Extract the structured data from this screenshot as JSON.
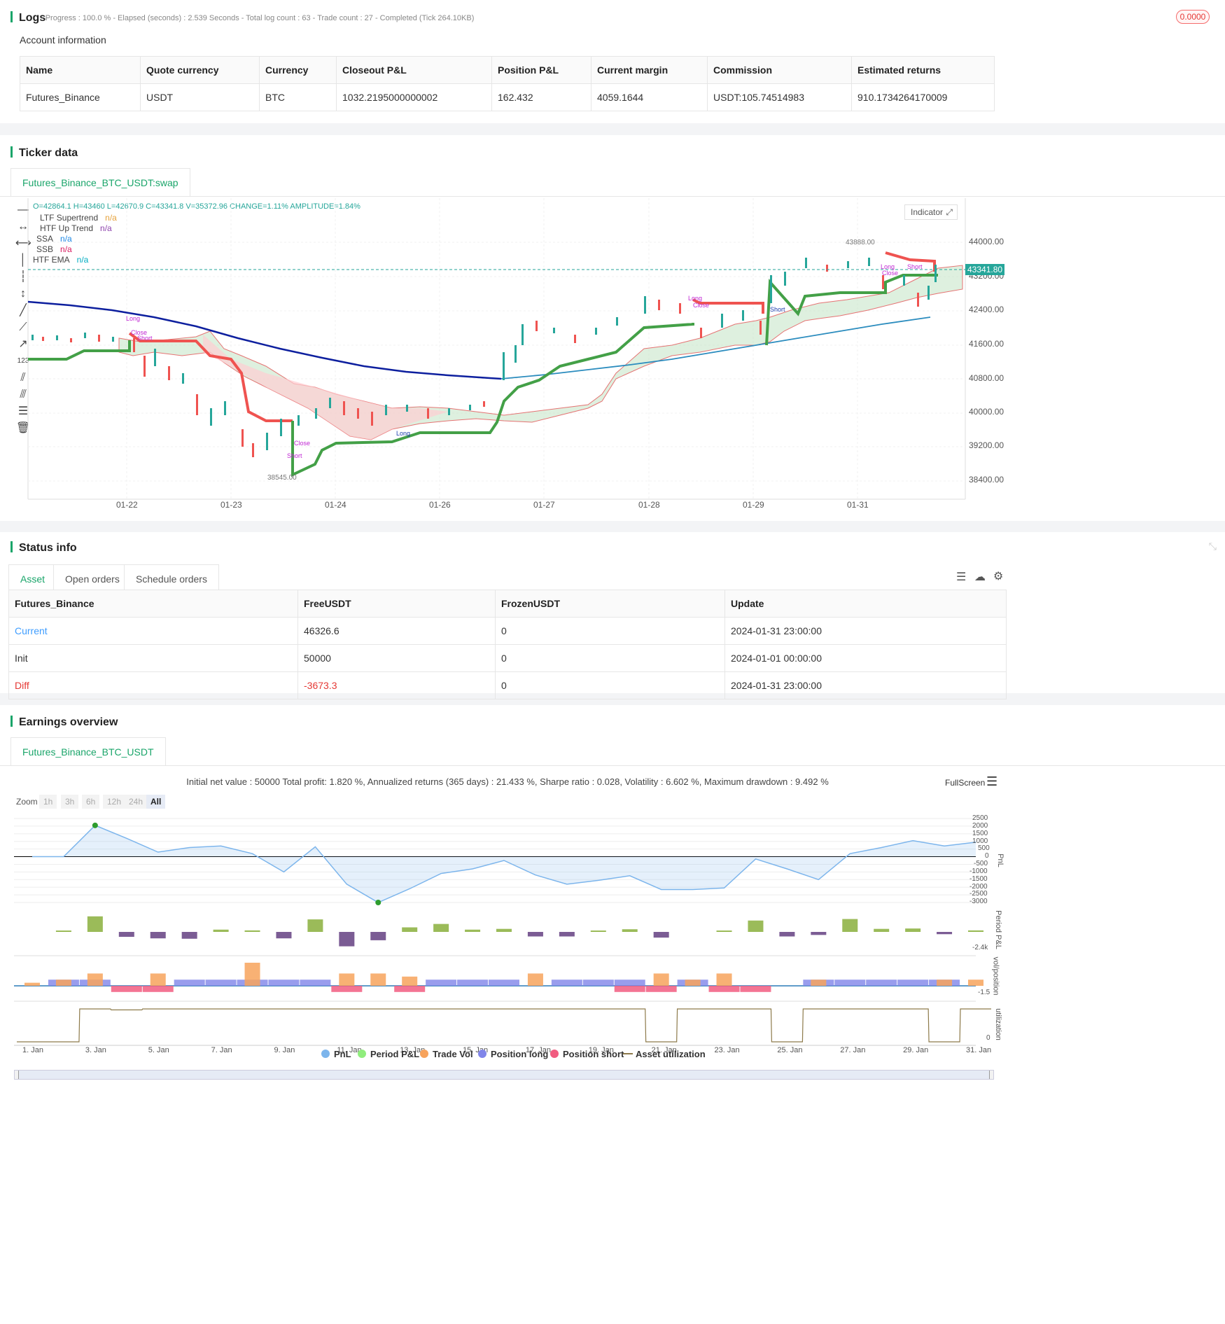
{
  "logs": {
    "title": "Logs",
    "status": "- Progress : 100.0 % - Elapsed (seconds) : 2.539  Seconds - Total log count : 63 - Trade count : 27 - Completed (Tick 264.10KB)",
    "badge": "0.0000"
  },
  "account": {
    "title": "Account information",
    "headers": [
      "Name",
      "Quote currency",
      "Currency",
      "Closeout P&L",
      "Position P&L",
      "Current margin",
      "Commission",
      "Estimated returns"
    ],
    "row": [
      "Futures_Binance",
      "USDT",
      "BTC",
      "1032.2195000000002",
      "162.432",
      "4059.1644",
      "USDT:105.74514983",
      "910.1734264170009"
    ]
  },
  "ticker": {
    "title": "Ticker data",
    "tab": "Futures_Binance_BTC_USDT:swap",
    "ohlc": "O=42864.1 H=43460 L=42670.9 C=43341.8 V=35372.96 CHANGE=1.11% AMPLITUDE=1.84%",
    "indicator_btn": "Indicator",
    "legend": [
      {
        "name": "LTF Supertrend",
        "value": "n/a",
        "color": "#e6a23c"
      },
      {
        "name": "HTF Up Trend",
        "value": "n/a",
        "color": "#8e44ad"
      },
      {
        "name": "SSA",
        "value": "n/a",
        "color": "#1e88e5"
      },
      {
        "name": "SSB",
        "value": "n/a",
        "color": "#d81b60"
      },
      {
        "name": "HTF EMA",
        "value": "n/a",
        "color": "#00acc1"
      }
    ],
    "price_axis": [
      "44000.00",
      "43200.00",
      "42400.00",
      "41600.00",
      "40800.00",
      "40000.00",
      "39200.00",
      "38400.00"
    ],
    "last_price": "43341.80",
    "high_label": "43888.00",
    "low_label": "38545.00",
    "date_axis": [
      "01-22",
      "01-23",
      "01-24",
      "01-26",
      "01-27",
      "01-28",
      "01-29",
      "01-31"
    ],
    "markers": [
      "Long",
      "Close",
      "Short",
      "Long",
      "Close",
      "Short",
      "Long",
      "Close",
      "Short",
      "Long",
      "Close",
      "Short"
    ]
  },
  "status": {
    "title": "Status info",
    "tabs": [
      "Asset",
      "Open orders",
      "Schedule orders"
    ],
    "headers": [
      "Futures_Binance",
      "FreeUSDT",
      "FrozenUSDT",
      "Update"
    ],
    "rows": [
      [
        "Current",
        "46326.6",
        "0",
        "2024-01-31 23:00:00"
      ],
      [
        "Init",
        "50000",
        "0",
        "2024-01-01 00:00:00"
      ],
      [
        "Diff",
        "-3673.3",
        "0",
        "2024-01-31 23:00:00"
      ]
    ]
  },
  "earnings": {
    "title": "Earnings overview",
    "tab": "Futures_Binance_BTC_USDT",
    "summary": "Initial net value : 50000 Total profit: 1.820 %, Annualized returns (365 days) : 21.433 %, Sharpe ratio : 0.028, Volatility : 6.602 %, Maximum drawdown : 9.492 %",
    "fullscreen": "FullScreen",
    "zoom_label": "Zoom",
    "zoom_buttons": [
      "1h",
      "3h",
      "6h",
      "12h",
      "24h",
      "All"
    ],
    "pnl_axis": [
      "2500",
      "2000",
      "1500",
      "1000",
      "500",
      "0",
      "-500",
      "-1000",
      "-1500",
      "-2000",
      "-2500",
      "-3000"
    ],
    "axis_titles": [
      "PnL",
      "Period P&L",
      "vol/position",
      "utilization"
    ],
    "period_min": "-2.4k",
    "vol_min": "-1.5",
    "util_zero": "0",
    "date_axis": [
      "1. Jan",
      "3. Jan",
      "5. Jan",
      "7. Jan",
      "9. Jan",
      "11. Jan",
      "13. Jan",
      "15. Jan",
      "17. Jan",
      "19. Jan",
      "21. Jan",
      "23. Jan",
      "25. Jan",
      "27. Jan",
      "29. Jan",
      "31. Jan"
    ],
    "legend": [
      {
        "name": "PnL",
        "color": "#7cb5ec"
      },
      {
        "name": "Period P&L",
        "color": "#90ed7d"
      },
      {
        "name": "Trade Vol",
        "color": "#f7a35c"
      },
      {
        "name": "Position long",
        "color": "#8085e9"
      },
      {
        "name": "Position short",
        "color": "#f15c80"
      },
      {
        "name": "Asset utilization",
        "color": "#8d7a4a"
      }
    ],
    "chart_data": {
      "type": "line",
      "x": [
        "1. Jan",
        "2. Jan",
        "3. Jan",
        "4. Jan",
        "5. Jan",
        "6. Jan",
        "7. Jan",
        "8. Jan",
        "9. Jan",
        "10. Jan",
        "11. Jan",
        "12. Jan",
        "13. Jan",
        "14. Jan",
        "15. Jan",
        "16. Jan",
        "17. Jan",
        "18. Jan",
        "19. Jan",
        "20. Jan",
        "21. Jan",
        "22. Jan",
        "23. Jan",
        "24. Jan",
        "25. Jan",
        "26. Jan",
        "27. Jan",
        "28. Jan",
        "29. Jan",
        "30. Jan",
        "31. Jan"
      ],
      "series": [
        {
          "name": "PnL",
          "values": [
            0,
            0,
            2050,
            1200,
            300,
            600,
            700,
            200,
            -1000,
            650,
            -1800,
            -3000,
            -2100,
            -1100,
            -800,
            -250,
            -1200,
            -1800,
            -1550,
            -1250,
            -2150,
            -2150,
            -2050,
            -150,
            -800,
            -1500,
            200,
            600,
            1050,
            700,
            950
          ]
        },
        {
          "name": "Period P&L",
          "values": [
            0,
            150,
            2050,
            -650,
            -850,
            -900,
            300,
            200,
            -850,
            1650,
            -1900,
            -1100,
            600,
            1050,
            300,
            400,
            -600,
            -600,
            150,
            350,
            -750,
            0,
            100,
            1500,
            -600,
            -400,
            1700,
            400,
            450,
            -300,
            200
          ]
        },
        {
          "name": "Trade Vol",
          "values": [
            0.2,
            0.4,
            0.8,
            0,
            0.8,
            0,
            0,
            1.5,
            0,
            0,
            0.8,
            0.8,
            0.6,
            0,
            0,
            0,
            0.8,
            0,
            0,
            0,
            0.8,
            0.4,
            0.8,
            0,
            0,
            0.4,
            0,
            0,
            0,
            0.4,
            0.4
          ]
        },
        {
          "name": "Position long",
          "values": [
            0,
            0.4,
            0.4,
            0,
            0,
            0.4,
            0.4,
            0.4,
            0.4,
            0.4,
            0,
            0,
            0,
            0.4,
            0.4,
            0.4,
            0,
            0.4,
            0.4,
            0.4,
            0,
            0.4,
            0,
            0,
            0,
            0.4,
            0.4,
            0.4,
            0.4,
            0.4,
            0
          ]
        },
        {
          "name": "Position short",
          "values": [
            0,
            0,
            0,
            -0.4,
            -0.4,
            0,
            0,
            0,
            0,
            0,
            -0.4,
            0,
            -0.4,
            0,
            0,
            0,
            0,
            0,
            0,
            -0.4,
            -0.4,
            0,
            -0.4,
            -0.4,
            0,
            0,
            0,
            0,
            0,
            0,
            0
          ]
        },
        {
          "name": "Asset utilization",
          "values": [
            0,
            0,
            1,
            0.97,
            1,
            1,
            1,
            1,
            1,
            1,
            1,
            1,
            1,
            1,
            1,
            1,
            1,
            1,
            1,
            1,
            0,
            1,
            1,
            1,
            0,
            1,
            1,
            1,
            1,
            0,
            1
          ]
        }
      ],
      "ylim": [
        -3000,
        2500
      ]
    }
  }
}
